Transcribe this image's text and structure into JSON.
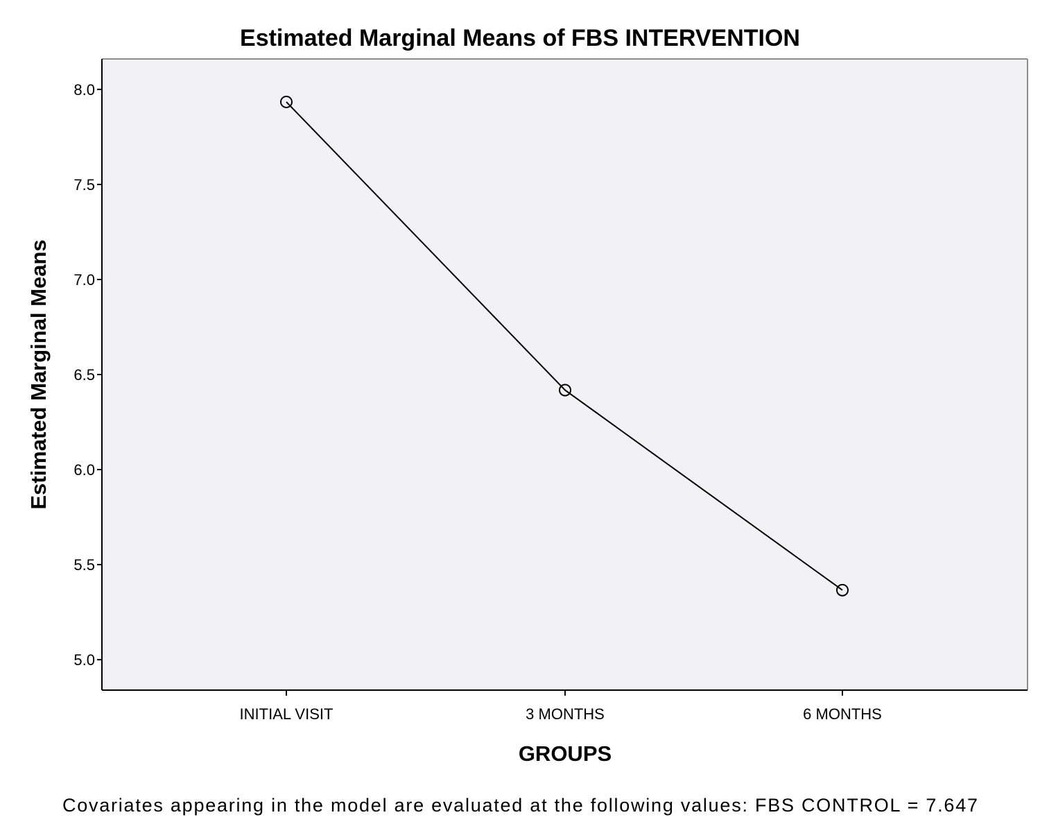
{
  "chart_data": {
    "type": "line",
    "title": "Estimated Marginal Means of FBS INTERVENTION",
    "xlabel": "GROUPS",
    "ylabel": "Estimated Marginal Means",
    "categories": [
      "INITIAL VISIT",
      "3 MONTHS",
      "6 MONTHS"
    ],
    "series": [
      {
        "name": "FBS INTERVENTION",
        "values": [
          7.934,
          6.418,
          5.366
        ],
        "marker": "open-circle"
      }
    ],
    "ylim": [
      4.84,
      8.16
    ],
    "yticks": [
      5.0,
      5.5,
      6.0,
      6.5,
      7.0,
      7.5,
      8.0
    ],
    "ytick_labels": [
      "5.0",
      "5.5",
      "6.0",
      "6.5",
      "7.0",
      "7.5",
      "8.0"
    ],
    "grid": false,
    "legend": "none",
    "footnote": "Covariates appearing in the model are evaluated at the following values: FBS CONTROL = 7.647",
    "colors": {
      "plot_background": "#f2f2f4",
      "line": "#000000",
      "frame_top_right": "#8c8c8c"
    }
  }
}
